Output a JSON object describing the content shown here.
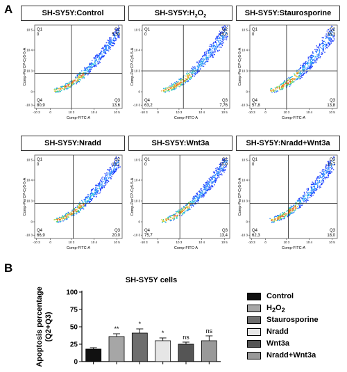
{
  "panel_a_label": "A",
  "panel_b_label": "B",
  "flow_plots": [
    {
      "title_parts": [
        "SH-SY5Y:Control"
      ],
      "q1": "Q1\n0",
      "q2": "Q2\n5,50",
      "q3": "Q3\n13,6",
      "q4": "Q4\n80,9"
    },
    {
      "title_parts": [
        "SH-SY5Y:H",
        "2",
        "O",
        "2"
      ],
      "q1": "Q1\n0",
      "q2": "Q2\n29,0",
      "q3": "Q3\n7,76",
      "q4": "Q4\n63,2"
    },
    {
      "title_parts": [
        "SH-SY5Y:Staurosporine"
      ],
      "q1": "Q1\n0",
      "q2": "Q2\n28,3",
      "q3": "Q3\n13,8",
      "q4": "Q4\n57,8"
    },
    {
      "title_parts": [
        "SH-SY5Y:Nradd"
      ],
      "q1": "Q1\n0",
      "q2": "Q2\n13,1",
      "q3": "Q3\n20,0",
      "q4": "Q4\n66,9"
    },
    {
      "title_parts": [
        "SH-SY5Y:Wnt3a"
      ],
      "q1": "Q1\n0",
      "q2": "Q2\n10,9",
      "q3": "Q3\n13,4",
      "q4": "Q4\n75,7"
    },
    {
      "title_parts": [
        "SH-SY5Y:Nradd+Wnt3a"
      ],
      "q1": "Q1\n0",
      "q2": "Q2\n19,7",
      "q3": "Q3\n18,0",
      "q4": "Q4\n62,3"
    }
  ],
  "flow_axes": {
    "x_label": "Comp-FITC-A",
    "y_label": "Comp-PerCP-Cy5-5-A",
    "x_ticks": [
      "-10 3",
      "0",
      "10 3",
      "10 4",
      "10 5"
    ],
    "y_ticks": [
      "10 5",
      "10 4",
      "10 3",
      "0",
      "-10 3"
    ]
  },
  "chart_data": {
    "type": "bar",
    "title": "SH-SY5Y cells",
    "ylabel": "Apoptosis percentage (Q2+Q3)",
    "ylim": [
      0,
      100
    ],
    "yticks": [
      0,
      25,
      50,
      75,
      100
    ],
    "categories": [
      "Control",
      "H2O2",
      "Staurosporine",
      "Nradd",
      "Wnt3a",
      "Nradd+Wnt3a"
    ],
    "values": [
      18,
      36,
      41,
      30,
      25,
      30
    ],
    "errors": [
      2,
      4,
      6,
      4,
      3,
      7
    ],
    "significance": [
      "",
      "**",
      "*",
      "*",
      "ns",
      "ns"
    ],
    "colors": [
      "#111111",
      "#a6a6a6",
      "#6e6e6e",
      "#e6e6e6",
      "#555555",
      "#999999"
    ],
    "legend": [
      {
        "label_parts": [
          "Control"
        ]
      },
      {
        "label_parts": [
          "H",
          "2",
          "O",
          "2"
        ]
      },
      {
        "label_parts": [
          "Staurosporine"
        ]
      },
      {
        "label_parts": [
          "Nradd"
        ]
      },
      {
        "label_parts": [
          "Wnt3a"
        ]
      },
      {
        "label_parts": [
          "Nradd+Wnt3a"
        ]
      }
    ]
  }
}
